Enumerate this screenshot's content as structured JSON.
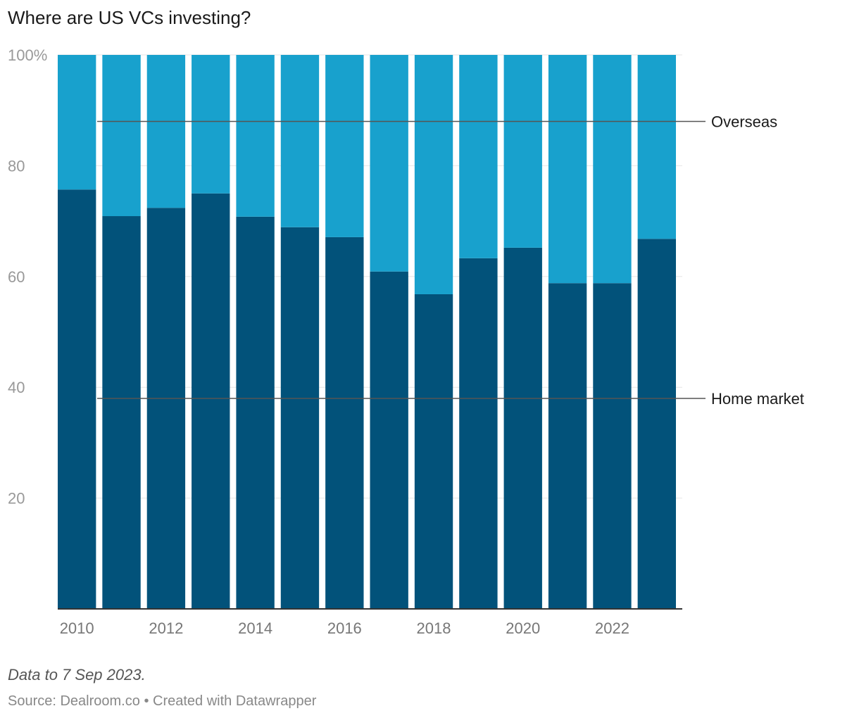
{
  "title": "Where are US VCs investing?",
  "note": "Data to 7 Sep 2023.",
  "footer": {
    "source": "Source: Dealroom.co",
    "separator": "•",
    "created_with": "Created with Datawrapper"
  },
  "colors": {
    "home_market": "#02527a",
    "overseas": "#18a1cd",
    "gridline": "#e6e6e6",
    "axis": "#333333",
    "tick_label": "#999999",
    "x_tick_label": "#777777",
    "annotation_line": "#555555",
    "annotation_text": "#1a1a1a"
  },
  "chart_data": {
    "type": "bar",
    "stacked": true,
    "title": "Where are US VCs investing?",
    "xlabel": "",
    "ylabel": "",
    "ylim": [
      0,
      100
    ],
    "y_ticks": [
      "20",
      "40",
      "60",
      "80",
      "100%"
    ],
    "x_ticks": [
      "2010",
      "2012",
      "2014",
      "2016",
      "2018",
      "2020",
      "2022"
    ],
    "categories": [
      "2010",
      "2011",
      "2012",
      "2013",
      "2014",
      "2015",
      "2016",
      "2017",
      "2018",
      "2019",
      "2020",
      "2021",
      "2022",
      "2023"
    ],
    "series": [
      {
        "name": "Home market",
        "values": [
          75.7,
          70.9,
          72.4,
          75.0,
          70.8,
          68.9,
          67.1,
          60.9,
          56.8,
          63.3,
          65.2,
          58.8,
          58.8,
          66.8
        ]
      },
      {
        "name": "Overseas",
        "values": [
          24.3,
          29.1,
          27.6,
          25.0,
          29.2,
          31.1,
          32.9,
          39.1,
          43.2,
          36.7,
          34.8,
          41.2,
          41.2,
          33.2
        ]
      }
    ],
    "annotations": [
      {
        "label": "Overseas",
        "value": 88
      },
      {
        "label": "Home market",
        "value": 38
      }
    ],
    "grid": true,
    "legend": "inline labels on right"
  }
}
